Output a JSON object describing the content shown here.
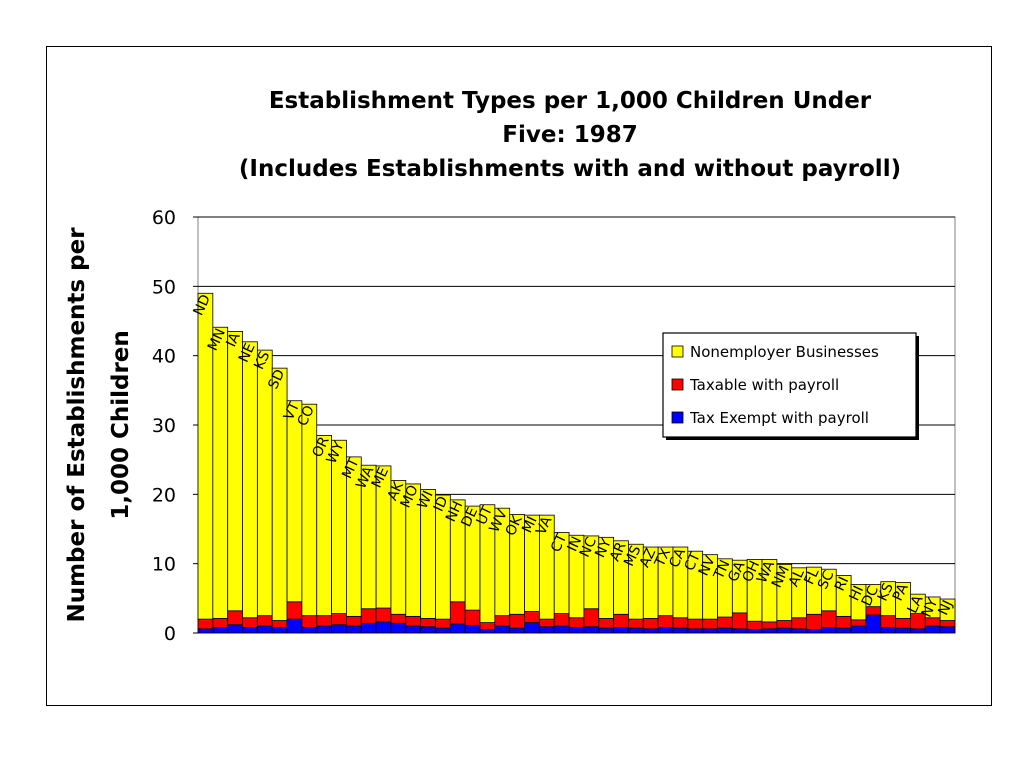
{
  "chart_data": {
    "type": "bar",
    "stacked": true,
    "title": [
      "Establishment Types per 1,000 Children  Under",
      "Five: 1987",
      "(Includes Establishments with and without payroll)"
    ],
    "xlabel": "",
    "ylabel": [
      "Number of Establishments per",
      "1,000 Children"
    ],
    "ylim": [
      0,
      60
    ],
    "yticks": [
      0,
      10,
      20,
      30,
      40,
      50,
      60
    ],
    "grid": true,
    "legend_position": "right",
    "categories": [
      "ND",
      "MN",
      "IA",
      "NE",
      "KS",
      "SD",
      "VT",
      "CO",
      "OR",
      "WY",
      "MT",
      "WA",
      "ME",
      "AK",
      "MO",
      "WI",
      "ID",
      "NH",
      "DE",
      "UT",
      "WV",
      "OK",
      "MI",
      "VA",
      "CT",
      "IN",
      "NC",
      "NY",
      "AR",
      "MS",
      "AZ",
      "TX",
      "CA",
      "CT",
      "NV",
      "TN",
      "GA",
      "OH",
      "WA",
      "NM",
      "AL",
      "FL",
      "SC",
      "RI",
      "HI",
      "DC",
      "KS",
      "PA",
      "LA",
      "NY",
      "NJ"
    ],
    "series": [
      {
        "name": "Tax Exempt with payroll",
        "color": "#0000ff",
        "values": [
          0.6,
          0.8,
          1.2,
          0.8,
          1.0,
          0.8,
          2.0,
          0.8,
          1.0,
          1.2,
          1.0,
          1.4,
          1.6,
          1.4,
          1.0,
          0.9,
          0.7,
          1.3,
          1.1,
          0.5,
          1.0,
          0.7,
          1.5,
          0.9,
          1.0,
          0.8,
          0.9,
          0.7,
          0.8,
          0.7,
          0.6,
          0.8,
          0.7,
          0.6,
          0.6,
          0.7,
          0.6,
          0.5,
          0.6,
          0.7,
          0.6,
          0.5,
          0.8,
          0.7,
          1.0,
          2.6,
          0.8,
          0.7,
          0.6,
          1.0,
          0.9
        ]
      },
      {
        "name": "Taxable with payroll",
        "color": "#ff0000",
        "values": [
          1.4,
          1.3,
          2.0,
          1.4,
          1.5,
          1.0,
          2.5,
          1.7,
          1.5,
          1.6,
          1.4,
          2.1,
          2.0,
          1.3,
          1.4,
          1.2,
          1.3,
          3.2,
          2.2,
          1.0,
          1.5,
          2.0,
          1.6,
          1.1,
          1.8,
          1.4,
          2.6,
          1.4,
          1.9,
          1.3,
          1.5,
          1.7,
          1.5,
          1.4,
          1.4,
          1.6,
          2.3,
          1.2,
          1.0,
          1.1,
          1.6,
          2.2,
          2.4,
          1.7,
          0.9,
          1.2,
          1.7,
          1.4,
          2.2,
          1.2,
          0.9
        ]
      },
      {
        "name": "Nonemployer Businesses",
        "color": "#ffff00",
        "values": [
          47.0,
          42.0,
          40.3,
          39.8,
          38.3,
          36.4,
          29.0,
          30.5,
          26.0,
          25.0,
          23.0,
          20.7,
          20.5,
          19.3,
          19.1,
          18.6,
          17.9,
          14.7,
          15.0,
          17.0,
          15.5,
          14.4,
          13.9,
          15.0,
          11.7,
          11.9,
          10.5,
          11.7,
          10.6,
          10.8,
          10.3,
          9.9,
          10.2,
          9.8,
          9.3,
          8.4,
          7.6,
          8.9,
          9.0,
          8.1,
          7.2,
          6.8,
          6.0,
          5.9,
          5.1,
          3.2,
          4.9,
          5.2,
          2.8,
          3.0,
          3.1
        ]
      }
    ],
    "legend_order": [
      "Nonemployer Businesses",
      "Taxable with payroll",
      "Tax Exempt with payroll"
    ]
  }
}
